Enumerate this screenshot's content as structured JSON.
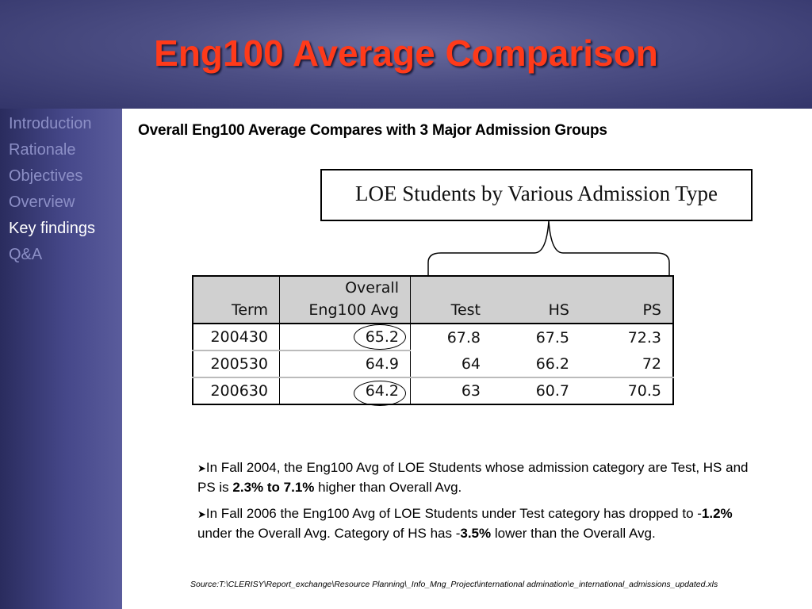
{
  "slide": {
    "title": "Eng100 Average Comparison"
  },
  "sidebar": {
    "items": [
      {
        "label": "Introduction",
        "active": false
      },
      {
        "label": "Rationale",
        "active": false
      },
      {
        "label": "Objectives",
        "active": false
      },
      {
        "label": "Overview",
        "active": false
      },
      {
        "label": "Key findings",
        "active": true
      },
      {
        "label": "Q&A",
        "active": false
      }
    ]
  },
  "main": {
    "subtitle": "Overall Eng100 Average Compares with 3 Major Admission Groups",
    "figure_title": "LOE Students by Various Admission Type",
    "table": {
      "headers": {
        "term": "Term",
        "avg_line1": "Overall",
        "avg_line2": "Eng100 Avg",
        "test": "Test",
        "hs": "HS",
        "ps": "PS"
      },
      "rows": [
        {
          "term": "200430",
          "avg": "65.2",
          "test": "67.8",
          "hs": "67.5",
          "ps": "72.3"
        },
        {
          "term": "200530",
          "avg": "64.9",
          "test": "64",
          "hs": "66.2",
          "ps": "72"
        },
        {
          "term": "200630",
          "avg": "64.2",
          "test": "63",
          "hs": "60.7",
          "ps": "70.5"
        }
      ]
    },
    "bullets": [
      {
        "pre": "In Fall 2004, the Eng100 Avg of LOE Students whose admission category are Test, HS and PS is ",
        "bold": "2.3% to 7.1%",
        "post": " higher than Overall Avg."
      },
      {
        "pre": "In Fall 2006 the Eng100 Avg of LOE Students under Test category has dropped to -",
        "bold": "1.2%",
        "mid": " under the Overall Avg. Category of HS has -",
        "bold2": "3.5%",
        "post": " lower than the Overall Avg."
      }
    ],
    "bullet_icon": "arrow-bullet-icon",
    "source": "Source:T:\\CLERISY\\Report_exchange\\Resource Planning\\_Info_Mng_Project\\international admination\\e_international_admissions_updated.xls"
  },
  "colors": {
    "title": "#ff3a1a",
    "nav_inactive": "#8c8fc6",
    "nav_active": "#ffffff",
    "header_bg": "#4c4e84"
  }
}
